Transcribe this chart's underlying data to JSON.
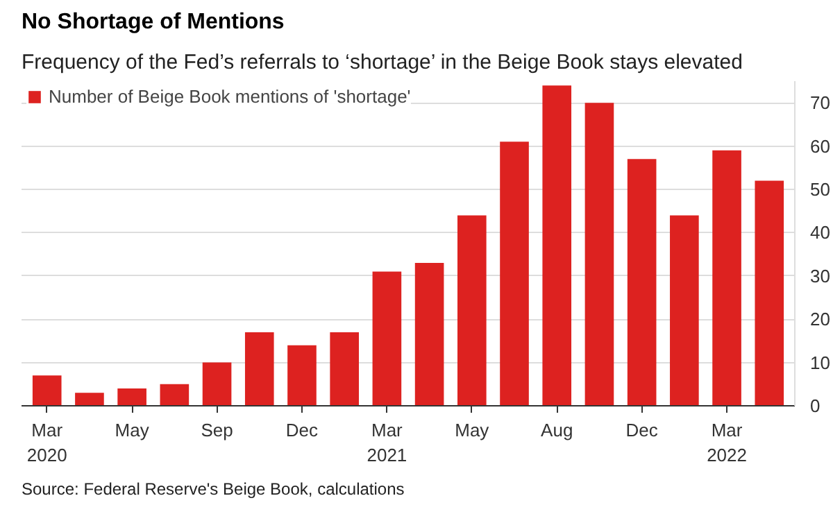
{
  "chart_data": {
    "type": "bar",
    "title": "No Shortage of Mentions",
    "subtitle": "Frequency of the Fed’s referrals to ‘shortage’ in the Beige Book stays elevated",
    "categories": [
      "Mar\n2020",
      null,
      "May",
      null,
      "Sep",
      null,
      "Dec",
      null,
      "Mar\n2021",
      null,
      "May",
      null,
      "Aug",
      null,
      "Dec",
      null,
      "Mar\n2022",
      null
    ],
    "series": [
      {
        "name": "Number of Beige Book mentions of 'shortage'",
        "color": "#dd2220",
        "values": [
          7,
          3,
          4,
          5,
          10,
          17,
          14,
          17,
          31,
          33,
          44,
          61,
          74,
          70,
          57,
          44,
          59,
          52
        ]
      }
    ],
    "ylim": [
      0,
      75
    ],
    "yticks": [
      0,
      10,
      20,
      30,
      40,
      50,
      60,
      70
    ],
    "grid": "y",
    "legend": "top left",
    "annotations": [
      "Source: Federal Reserve's Beige Book, calculations"
    ]
  }
}
